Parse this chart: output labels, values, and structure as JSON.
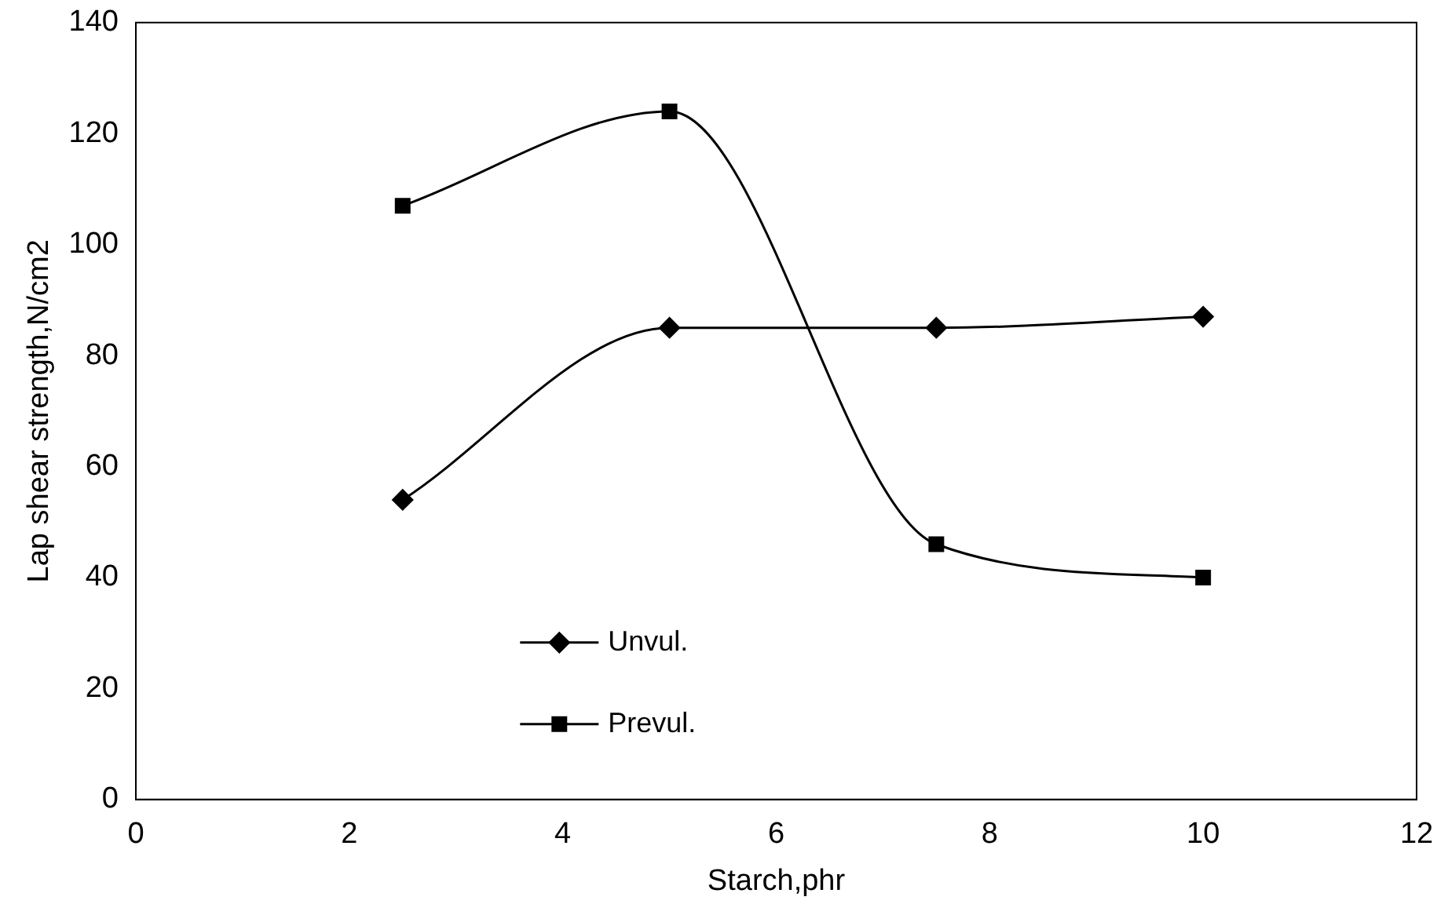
{
  "chart_data": {
    "type": "line",
    "xlabel": "Starch,phr",
    "ylabel": "Lap shear strength,N/cm2",
    "x": [
      2.5,
      5,
      7.5,
      10
    ],
    "series": [
      {
        "name": "Unvul.",
        "color": "#000000",
        "marker": "diamond",
        "values": [
          54,
          85,
          85,
          87
        ]
      },
      {
        "name": "Prevul.",
        "color": "#000000",
        "marker": "square",
        "values": [
          107,
          124,
          46,
          40
        ]
      }
    ],
    "xlim": [
      0,
      12
    ],
    "xticks": [
      0,
      2,
      4,
      6,
      8,
      10,
      12
    ],
    "ylim": [
      0,
      140
    ],
    "yticks": [
      0,
      20,
      40,
      60,
      80,
      100,
      120,
      140
    ],
    "grid": false,
    "legend": "bottom",
    "line_style": "solid"
  }
}
